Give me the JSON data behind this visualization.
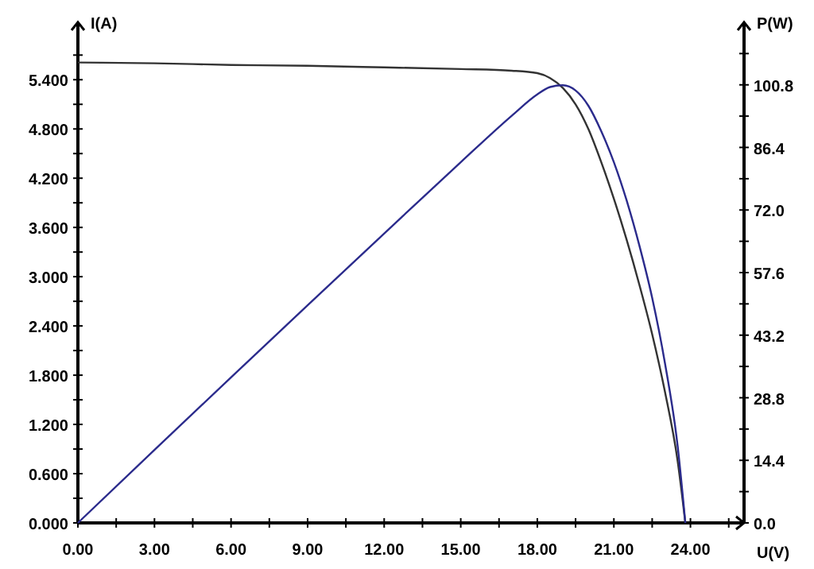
{
  "chart_data": {
    "type": "line",
    "xlabel": "U(V)",
    "ylabel": "I(A)",
    "y2label": "P(W)",
    "x": [
      0,
      3,
      6,
      9,
      12,
      15,
      17,
      18,
      18.5,
      19,
      19.5,
      20,
      20.5,
      21,
      21.5,
      22,
      22.5,
      23,
      23.5,
      23.8
    ],
    "series": [
      {
        "color": "#333333",
        "values": [
          5.61,
          5.6,
          5.58,
          5.57,
          5.55,
          5.53,
          5.51,
          5.48,
          5.42,
          5.3,
          5.1,
          4.8,
          4.4,
          3.95,
          3.45,
          2.9,
          2.3,
          1.6,
          0.75,
          0
        ]
      },
      {
        "color": "#2b2b8c",
        "axis": "y2",
        "values": [
          0,
          16.8,
          33.5,
          50.1,
          66.6,
          83.0,
          93.7,
          98.6,
          100.3,
          100.7,
          99.5,
          96,
          90.2,
          83,
          74.2,
          63.8,
          51.8,
          36.8,
          17.6,
          0
        ]
      }
    ],
    "xlim": [
      0,
      26.1
    ],
    "ylim": [
      0,
      6.1
    ],
    "y2lim": [
      0,
      115.2
    ],
    "xticks": [
      {
        "value": 0,
        "label": "0.00"
      },
      {
        "value": 1.5,
        "label": null
      },
      {
        "value": 3,
        "label": "3.00"
      },
      {
        "value": 4.5,
        "label": null
      },
      {
        "value": 6,
        "label": "6.00"
      },
      {
        "value": 7.5,
        "label": null
      },
      {
        "value": 9,
        "label": "9.00"
      },
      {
        "value": 10.5,
        "label": null
      },
      {
        "value": 12,
        "label": "12.00"
      },
      {
        "value": 13.5,
        "label": null
      },
      {
        "value": 15,
        "label": "15.00"
      },
      {
        "value": 16.5,
        "label": null
      },
      {
        "value": 18,
        "label": "18.00"
      },
      {
        "value": 19.5,
        "label": null
      },
      {
        "value": 21,
        "label": "21.00"
      },
      {
        "value": 22.5,
        "label": null
      },
      {
        "value": 24,
        "label": "24.00"
      },
      {
        "value": 25.5,
        "label": null
      }
    ],
    "yticks": [
      {
        "value": 0,
        "label": "0.000"
      },
      {
        "value": 0.3,
        "label": null
      },
      {
        "value": 0.6,
        "label": "0.600"
      },
      {
        "value": 0.9,
        "label": null
      },
      {
        "value": 1.2,
        "label": "1.200"
      },
      {
        "value": 1.5,
        "label": null
      },
      {
        "value": 1.8,
        "label": "1.800"
      },
      {
        "value": 2.1,
        "label": null
      },
      {
        "value": 2.4,
        "label": "2.400"
      },
      {
        "value": 2.7,
        "label": null
      },
      {
        "value": 3,
        "label": "3.000"
      },
      {
        "value": 3.3,
        "label": null
      },
      {
        "value": 3.6,
        "label": "3.600"
      },
      {
        "value": 3.9,
        "label": null
      },
      {
        "value": 4.2,
        "label": "4.200"
      },
      {
        "value": 4.5,
        "label": null
      },
      {
        "value": 4.8,
        "label": "4.800"
      },
      {
        "value": 5.1,
        "label": null
      },
      {
        "value": 5.4,
        "label": "5.400"
      },
      {
        "value": 5.7,
        "label": null
      }
    ],
    "y2ticks": [
      {
        "value": 0,
        "label": "0.0"
      },
      {
        "value": 7.2,
        "label": null
      },
      {
        "value": 14.4,
        "label": "14.4"
      },
      {
        "value": 21.6,
        "label": null
      },
      {
        "value": 28.8,
        "label": "28.8"
      },
      {
        "value": 36,
        "label": null
      },
      {
        "value": 43.2,
        "label": "43.2"
      },
      {
        "value": 50.4,
        "label": null
      },
      {
        "value": 57.6,
        "label": "57.6"
      },
      {
        "value": 64.8,
        "label": null
      },
      {
        "value": 72,
        "label": "72.0"
      },
      {
        "value": 79.2,
        "label": null
      },
      {
        "value": 86.4,
        "label": "86.4"
      },
      {
        "value": 93.6,
        "label": null
      },
      {
        "value": 100.8,
        "label": "100.8"
      },
      {
        "value": 108,
        "label": null
      }
    ],
    "grid": false
  }
}
